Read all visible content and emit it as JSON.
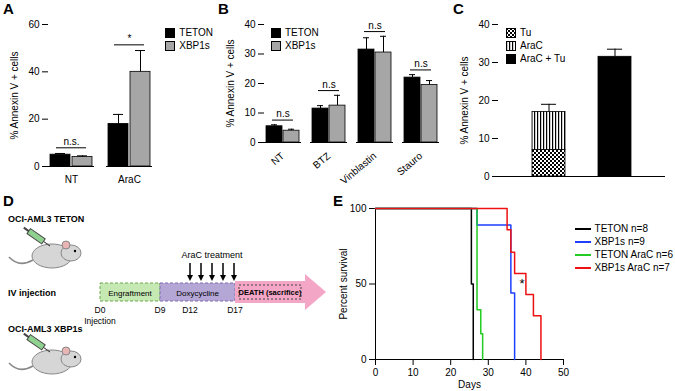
{
  "chart_data": [
    {
      "type": "bar",
      "title": "A",
      "ylabel": "% Annexin V + cells",
      "categories": [
        "NT",
        "AraC"
      ],
      "series": [
        {
          "name": "TETON",
          "color": "#000000",
          "values": [
            5,
            18
          ],
          "errors": [
            0.5,
            4
          ]
        },
        {
          "name": "XBP1s",
          "color": "#a6a6a6",
          "values": [
            4,
            40
          ],
          "errors": [
            0.5,
            9
          ]
        }
      ],
      "annotations": [
        "n.s.",
        "*"
      ],
      "ylim": [
        0,
        60
      ],
      "yticks": [
        0,
        20,
        40,
        60
      ],
      "legend": "top-right"
    },
    {
      "type": "bar",
      "title": "B",
      "ylabel": "% Annexin V + cells",
      "categories": [
        "NT",
        "BTZ",
        "Vinblastin",
        "Stauro"
      ],
      "series": [
        {
          "name": "TETON",
          "color": "#000000",
          "values": [
            5.5,
            11.5,
            31.5,
            22
          ],
          "errors": [
            0.5,
            1,
            4,
            1
          ]
        },
        {
          "name": "XBP1s",
          "color": "#a6a6a6",
          "values": [
            4,
            12.5,
            30.5,
            19.5
          ],
          "errors": [
            0.5,
            3.5,
            5.5,
            1.5
          ]
        }
      ],
      "annotations": [
        "n.s",
        "n.s",
        "n.s",
        "n.s"
      ],
      "ylim": [
        0,
        40
      ],
      "yticks": [
        0,
        10,
        20,
        30,
        40
      ],
      "legend": "top-left"
    },
    {
      "type": "bar",
      "title": "C",
      "ylabel": "% Annexin V + cells",
      "categories": [
        null,
        null
      ],
      "stacked": true,
      "series": [
        {
          "name": "Tu",
          "color": "#000000",
          "values": [
            7,
            null
          ]
        },
        {
          "name": "AraC",
          "color": "#000000",
          "values": [
            10,
            null
          ],
          "errors": [
            2,
            null
          ]
        },
        {
          "name": "AraC + Tu",
          "color": "#000000",
          "values": [
            null,
            31.5
          ],
          "errors": [
            null,
            2
          ]
        }
      ],
      "ylim": [
        0,
        40
      ],
      "yticks": [
        0,
        10,
        20,
        30,
        40
      ],
      "legend": "top-left"
    },
    {
      "type": "line",
      "title": "E",
      "xlabel": "Days",
      "ylabel": "Percent survival",
      "line_style": "step",
      "series": [
        {
          "name": "TETON n=8",
          "color": "#000000",
          "x": [
            0,
            25.5,
            26
          ],
          "values": [
            100,
            50,
            0
          ]
        },
        {
          "name": "XBP1s n=9",
          "color": "#1f3fff",
          "x": [
            0,
            27,
            36,
            37
          ],
          "values": [
            100,
            89,
            44,
            0
          ]
        },
        {
          "name": "TETON AraC n=6",
          "color": "#22cc22",
          "x": [
            0,
            27,
            28,
            28.5
          ],
          "values": [
            100,
            33,
            17,
            0
          ]
        },
        {
          "name": "XBP1s AraC n=7",
          "color": "#ee1111",
          "x": [
            0,
            35,
            36,
            37,
            40,
            42,
            44
          ],
          "values": [
            100,
            86,
            71,
            57,
            43,
            29,
            0
          ]
        }
      ],
      "annotations": [
        {
          "text": "*",
          "x": 39,
          "y": 50
        }
      ],
      "xlim": [
        0,
        50
      ],
      "xticks": [
        0,
        10,
        20,
        30,
        40,
        50
      ],
      "ylim": [
        0,
        100
      ],
      "yticks": [
        0,
        50,
        100
      ],
      "legend": "right"
    }
  ],
  "diagram": {
    "title": "D",
    "groups": [
      "OCI-AML3 TETON",
      "OCI-AML3 XBP1s"
    ],
    "route": "IV injection",
    "phases": [
      "Engraftment",
      "Doxycycline",
      "DEATH (sacrifice)"
    ],
    "treatment": "AraC treatment",
    "timepoints": [
      "D0",
      "D9",
      "D12",
      "D17"
    ],
    "timepoint_note": "Injection"
  }
}
